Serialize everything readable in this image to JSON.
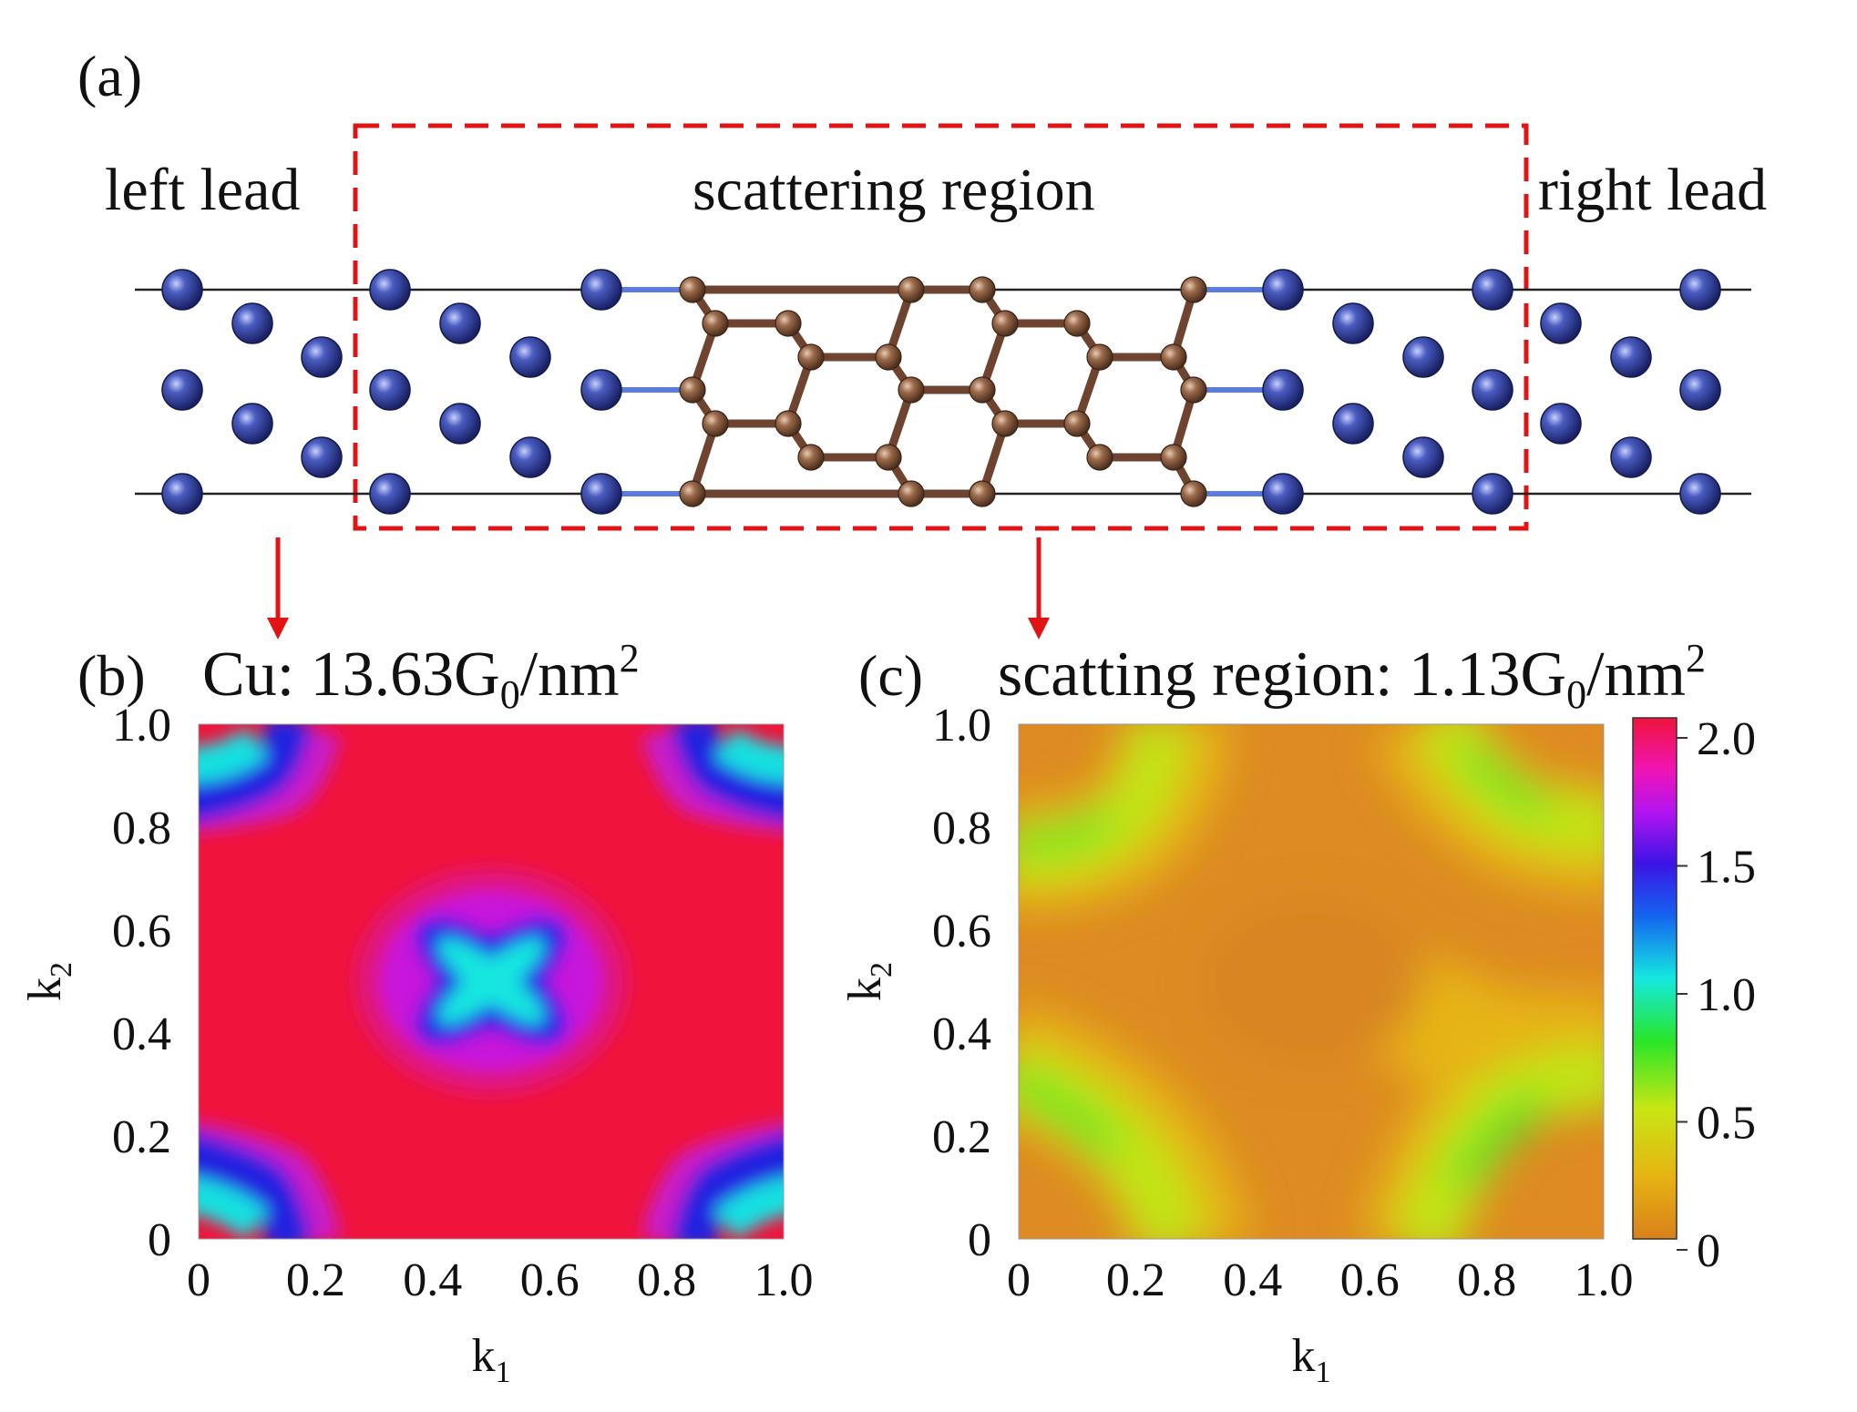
{
  "panel_a": {
    "label": "(a)",
    "left_lead": "left lead",
    "scattering_region": "scattering region",
    "right_lead": "right lead"
  },
  "panel_b": {
    "label": "(b)",
    "title_prefix": "Cu: 13.63G",
    "title_sub": "0",
    "title_mid": "/nm",
    "title_sup": "2"
  },
  "panel_c": {
    "label": "(c)",
    "title_prefix": "scatting region: 1.13G",
    "title_sub": "0",
    "title_mid": "/nm",
    "title_sup": "2"
  },
  "axes": {
    "xlabel_main": "k",
    "xlabel_sub": "1",
    "ylabel_main": "k",
    "ylabel_sub": "2",
    "xticks": [
      "0",
      "0.2",
      "0.4",
      "0.6",
      "0.8",
      "1.0"
    ],
    "yticks": [
      "0",
      "0.2",
      "0.4",
      "0.6",
      "0.8",
      "1.0"
    ]
  },
  "colorbar": {
    "ticks": [
      "0",
      "0.5",
      "1.0",
      "1.5",
      "2.0"
    ],
    "range": [
      0,
      2.0
    ]
  },
  "colors": {
    "cu_atom": "#2b3a8c",
    "carbon_atom": "#8a5a3c",
    "dashed_box": "#e01414",
    "arrow": "#e01414"
  },
  "chart_data": [
    {
      "type": "heatmap",
      "title": "Cu: 13.63G0/nm2",
      "xlabel": "k1",
      "ylabel": "k2",
      "xlim": [
        0,
        1.0
      ],
      "ylim": [
        0,
        1.0
      ],
      "zlim": [
        0,
        2.0
      ],
      "description_values": "background ~2.0 transmission, cross-shaped minimum ~1.0 near (0.5,0.5), corner arcs ~1.2"
    },
    {
      "type": "heatmap",
      "title": "scatting region: 1.13G0/nm2",
      "xlabel": "k1",
      "ylabel": "k2",
      "xlim": [
        0,
        1.0
      ],
      "ylim": [
        0,
        1.0
      ],
      "zlim": [
        0,
        2.0
      ],
      "description_values": "background ~0.2 transmission, arcs ~0.6 near corners (0,1),(1,0) and (0,0),(1,1)"
    }
  ]
}
